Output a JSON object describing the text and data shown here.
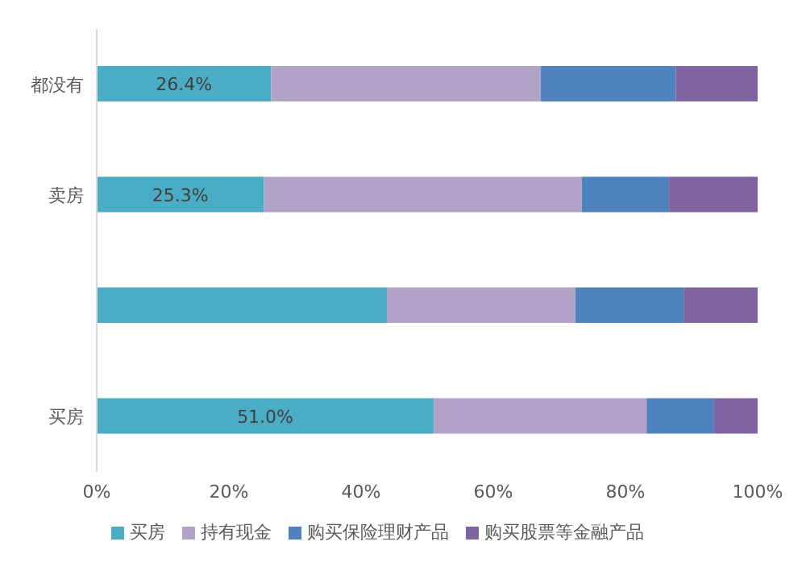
{
  "chart_data": {
    "type": "bar",
    "orientation": "horizontal",
    "stacked": true,
    "categories": [
      "都没有",
      "卖房",
      null,
      "买房"
    ],
    "series": [
      {
        "name": "买房",
        "color": "#4bacc6",
        "values": [
          26.4,
          25.3,
          43.9,
          51.0
        ],
        "value_labels": [
          "26.4%",
          "25.3%",
          null,
          "51.0%"
        ]
      },
      {
        "name": "持有现金",
        "color": "#b3a2c7",
        "values": [
          40.8,
          48.1,
          28.5,
          32.2
        ]
      },
      {
        "name": "购买保险理财产品",
        "color": "#4f81bd",
        "values": [
          20.4,
          13.2,
          16.4,
          10.2
        ]
      },
      {
        "name": "购买股票等金融产品",
        "color": "#8064a2",
        "values": [
          12.4,
          13.4,
          11.2,
          6.6
        ]
      }
    ],
    "xlim": [
      0,
      100
    ],
    "xticks": [
      {
        "value": 0,
        "label": "0%"
      },
      {
        "value": 20,
        "label": "20%"
      },
      {
        "value": 40,
        "label": "40%"
      },
      {
        "value": 60,
        "label": "60%"
      },
      {
        "value": 80,
        "label": "80%"
      },
      {
        "value": 100,
        "label": "100%"
      }
    ],
    "grid": false,
    "legend": "bottom"
  }
}
